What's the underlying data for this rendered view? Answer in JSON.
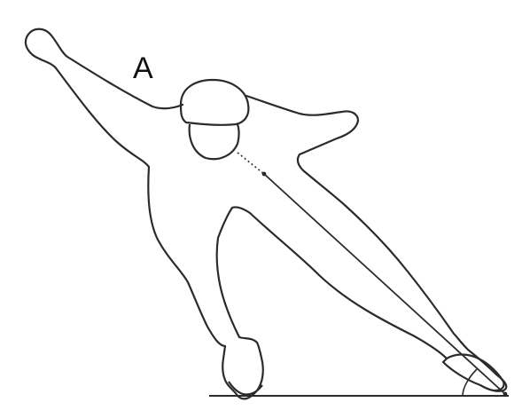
{
  "figure": {
    "label": "A"
  },
  "colors": {
    "line": "#2b2b2b",
    "background": "#ffffff"
  }
}
